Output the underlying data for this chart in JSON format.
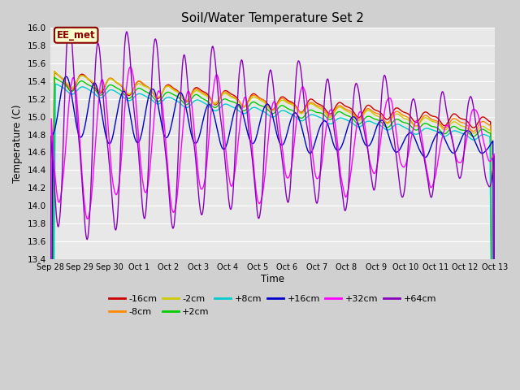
{
  "title": "Soil/Water Temperature Set 2",
  "xlabel": "Time",
  "ylabel": "Temperature (C)",
  "ylim": [
    13.4,
    16.0
  ],
  "yticks": [
    13.4,
    13.6,
    13.8,
    14.0,
    14.2,
    14.4,
    14.6,
    14.8,
    15.0,
    15.2,
    15.4,
    15.6,
    15.8,
    16.0
  ],
  "series": [
    {
      "label": "-16cm",
      "color": "#cc0000"
    },
    {
      "label": "-8cm",
      "color": "#ff8800"
    },
    {
      "label": "-2cm",
      "color": "#cccc00"
    },
    {
      "label": "+2cm",
      "color": "#00cc00"
    },
    {
      "label": "+8cm",
      "color": "#00cccc"
    },
    {
      "label": "+16cm",
      "color": "#0000cc"
    },
    {
      "label": "+32cm",
      "color": "#ff00ff"
    },
    {
      "label": "+64cm",
      "color": "#8800bb"
    }
  ],
  "annotation_text": "EE_met",
  "annotation_color": "#880000",
  "annotation_bg": "#ffffcc",
  "fig_bg": "#d0d0d0",
  "plot_bg": "#e8e8e8",
  "grid_color": "#ffffff",
  "xtick_labels": [
    "Sep 28",
    "Sep 29",
    "Sep 30",
    "Oct 1",
    "Oct 2",
    "Oct 3",
    "Oct 4",
    "Oct 5",
    "Oct 6",
    "Oct 7",
    "Oct 8",
    "Oct 9",
    "Oct 10",
    "Oct 11",
    "Oct 12",
    "Oct 13"
  ],
  "num_days": 15.5,
  "linewidth": 1.0,
  "title_fontsize": 11,
  "axis_fontsize": 8.5,
  "tick_fontsize": 7.5,
  "legend_fontsize": 8
}
